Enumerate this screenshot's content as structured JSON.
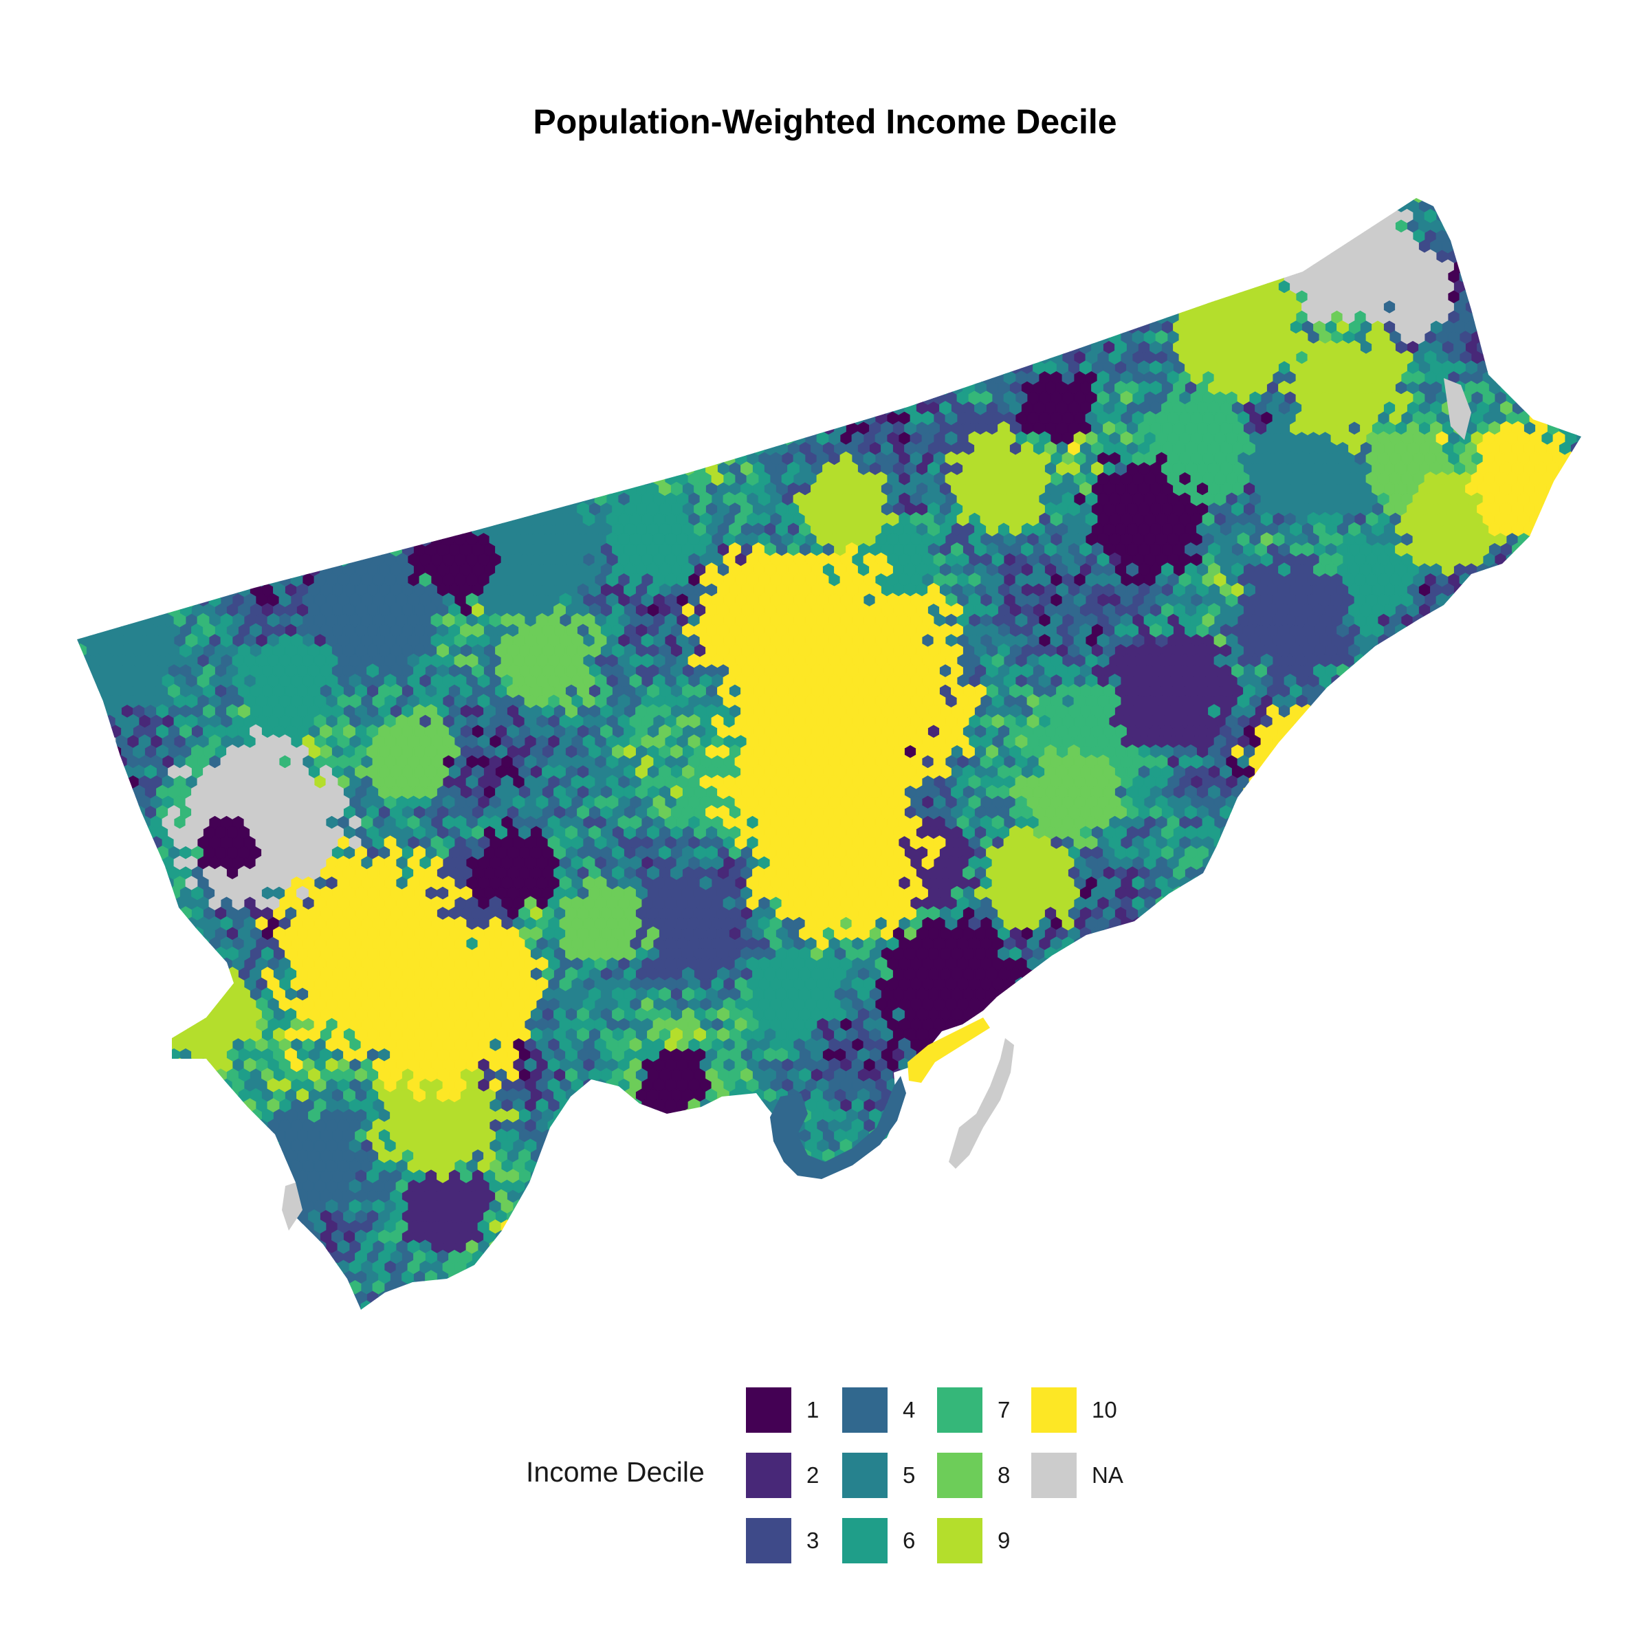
{
  "title": "Population-Weighted Income Decile",
  "legend": {
    "title": "Income Decile",
    "items": [
      {
        "label": "1",
        "color": "#440154"
      },
      {
        "label": "2",
        "color": "#482878"
      },
      {
        "label": "3",
        "color": "#3E4A89"
      },
      {
        "label": "4",
        "color": "#31688E"
      },
      {
        "label": "5",
        "color": "#26828E"
      },
      {
        "label": "6",
        "color": "#1F9E89"
      },
      {
        "label": "7",
        "color": "#35B779"
      },
      {
        "label": "8",
        "color": "#6DCD59"
      },
      {
        "label": "9",
        "color": "#B4DE2C"
      },
      {
        "label": "10",
        "color": "#FDE725"
      },
      {
        "label": "NA",
        "color": "#CCCCCC"
      }
    ]
  },
  "colors": {
    "background": "#ffffff",
    "na": "#CCCCCC"
  }
}
